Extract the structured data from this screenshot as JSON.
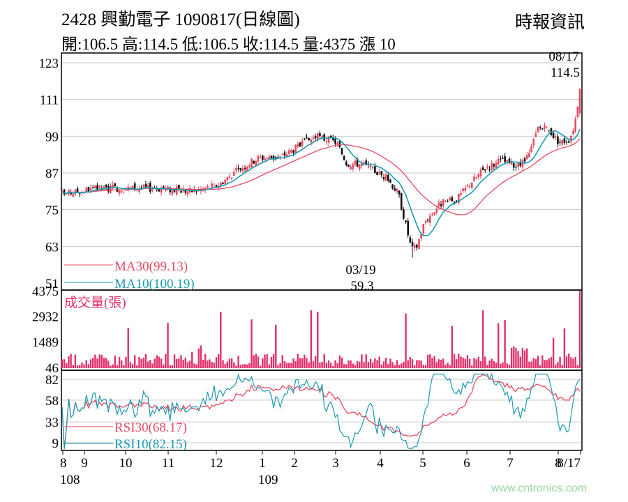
{
  "header": {
    "title": "2428  興勤電子 1090817(日線圖)",
    "ohlc": "開:106.5 高:114.5 低:106.5 收:114.5 量:4375 漲 10",
    "source": "時報資訊"
  },
  "watermark": "www.cntronics.com",
  "colors": {
    "up": "#e8495f",
    "down": "#111111",
    "ma30": "#e8495f",
    "ma10": "#1a9ab0",
    "volume": "#e0306a",
    "grid": "#c8c8c8"
  },
  "chart_data": [
    {
      "type": "candlestick",
      "panel": "price",
      "ylim": [
        51,
        123
      ],
      "yticks": [
        123,
        111,
        99,
        87,
        75,
        63,
        51
      ],
      "grid": true,
      "series": [
        {
          "name": "MA30(99.13)",
          "color": "#e8495f"
        },
        {
          "name": "MA10(100.19)",
          "color": "#1a9ab0"
        }
      ],
      "annotations": [
        {
          "date_label": "08/17",
          "value_label": "114.5",
          "note": "high"
        },
        {
          "date_label": "03/19",
          "value_label": "59.3",
          "note": "low"
        }
      ],
      "price_path": [
        [
          0,
          80
        ],
        [
          5,
          81.5
        ],
        [
          10,
          82
        ],
        [
          18,
          82
        ],
        [
          25,
          81
        ],
        [
          30,
          83
        ],
        [
          34,
          88
        ],
        [
          38,
          92
        ],
        [
          42,
          92
        ],
        [
          46,
          96
        ],
        [
          49,
          99
        ],
        [
          51,
          98
        ],
        [
          53,
          97
        ],
        [
          55,
          90
        ],
        [
          58,
          90
        ],
        [
          60,
          88
        ],
        [
          63,
          85
        ],
        [
          65,
          80
        ],
        [
          67.5,
          62
        ],
        [
          68.5,
          63
        ],
        [
          70,
          71
        ],
        [
          73,
          77
        ],
        [
          76,
          78
        ],
        [
          79,
          84
        ],
        [
          82,
          89
        ],
        [
          85,
          91
        ],
        [
          88,
          89
        ],
        [
          90,
          92
        ],
        [
          92,
          102
        ],
        [
          94,
          101
        ],
        [
          96,
          97
        ],
        [
          98,
          98
        ],
        [
          99,
          103
        ],
        [
          100,
          114.5
        ]
      ]
    },
    {
      "type": "bar",
      "panel": "volume",
      "title": "成交量(張)",
      "unit": "張",
      "yticks": [
        4375,
        2932,
        1489,
        46
      ],
      "ylim": [
        0,
        4375
      ],
      "last_value": 4375
    },
    {
      "type": "line",
      "panel": "rsi",
      "ylim": [
        0,
        90
      ],
      "yticks": [
        82,
        58,
        33,
        9
      ],
      "grid": true,
      "series": [
        {
          "name": "RSI30(68.17)",
          "color": "#e8495f"
        },
        {
          "name": "RSI10(82.15)",
          "color": "#1a9ab0"
        }
      ]
    }
  ],
  "x_axis": {
    "month_labels": [
      "8",
      "9",
      "10",
      "11",
      "12",
      "1",
      "2",
      "3",
      "4",
      "5",
      "6",
      "7",
      "8",
      "8/17"
    ],
    "year_labels": [
      "108",
      "109"
    ]
  }
}
